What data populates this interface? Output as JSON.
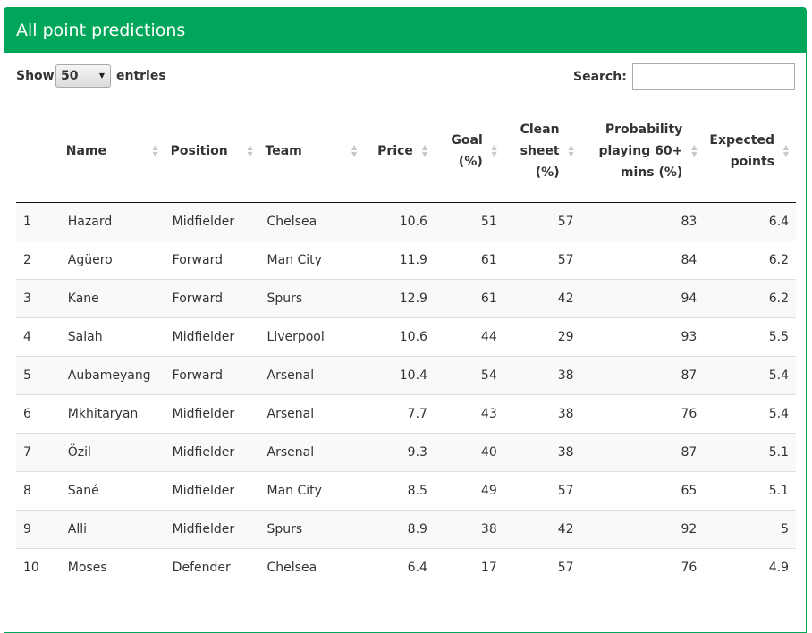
{
  "panel": {
    "title": "All point predictions",
    "accent_color": "#00a65a"
  },
  "controls": {
    "show_label": "Show",
    "page_length": "50",
    "entries_label": "entries",
    "search_label": "Search:",
    "search_value": ""
  },
  "table": {
    "columns": [
      {
        "label": "",
        "align": "left",
        "sortable": false
      },
      {
        "label": "Name",
        "align": "left",
        "sortable": true
      },
      {
        "label": "Position",
        "align": "left",
        "sortable": true
      },
      {
        "label": "Team",
        "align": "left",
        "sortable": true
      },
      {
        "label": "Price",
        "align": "right",
        "sortable": true
      },
      {
        "label": "Goal (%)",
        "align": "right",
        "sortable": true
      },
      {
        "label": "Clean sheet (%)",
        "align": "right",
        "sortable": true
      },
      {
        "label": "Probability playing 60+ mins (%)",
        "align": "right",
        "sortable": true
      },
      {
        "label": "Expected points",
        "align": "right",
        "sortable": true
      }
    ],
    "rows": [
      [
        "1",
        "Hazard",
        "Midfielder",
        "Chelsea",
        "10.6",
        "51",
        "57",
        "83",
        "6.4"
      ],
      [
        "2",
        "Agüero",
        "Forward",
        "Man City",
        "11.9",
        "61",
        "57",
        "84",
        "6.2"
      ],
      [
        "3",
        "Kane",
        "Forward",
        "Spurs",
        "12.9",
        "61",
        "42",
        "94",
        "6.2"
      ],
      [
        "4",
        "Salah",
        "Midfielder",
        "Liverpool",
        "10.6",
        "44",
        "29",
        "93",
        "5.5"
      ],
      [
        "5",
        "Aubameyang",
        "Forward",
        "Arsenal",
        "10.4",
        "54",
        "38",
        "87",
        "5.4"
      ],
      [
        "6",
        "Mkhitaryan",
        "Midfielder",
        "Arsenal",
        "7.7",
        "43",
        "38",
        "76",
        "5.4"
      ],
      [
        "7",
        "Özil",
        "Midfielder",
        "Arsenal",
        "9.3",
        "40",
        "38",
        "87",
        "5.1"
      ],
      [
        "8",
        "Sané",
        "Midfielder",
        "Man City",
        "8.5",
        "49",
        "57",
        "65",
        "5.1"
      ],
      [
        "9",
        "Alli",
        "Midfielder",
        "Spurs",
        "8.9",
        "38",
        "42",
        "92",
        "5"
      ],
      [
        "10",
        "Moses",
        "Defender",
        "Chelsea",
        "6.4",
        "17",
        "57",
        "76",
        "4.9"
      ]
    ]
  }
}
